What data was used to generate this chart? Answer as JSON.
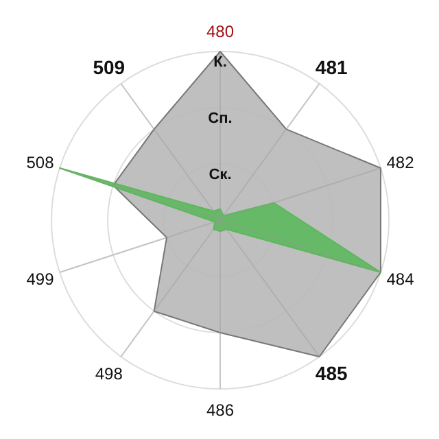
{
  "chart_data": {
    "type": "radar",
    "categories": [
      "480",
      "481",
      "482",
      "484",
      "485",
      "486",
      "498",
      "499",
      "508",
      "509"
    ],
    "ylim": [
      0,
      3
    ],
    "yticks": [
      {
        "value": 1,
        "label": "Ск."
      },
      {
        "value": 2,
        "label": "Сп."
      },
      {
        "value": 3,
        "label": "К."
      }
    ],
    "grid": true,
    "series": [
      {
        "color": "#b8b8b8",
        "values": [
          3,
          2,
          3,
          3,
          3,
          2,
          2,
          1,
          2,
          2
        ]
      },
      {
        "color": "#5cb85c",
        "values": [
          0.2,
          0.1,
          1,
          3,
          0.2,
          0.2,
          0.2,
          0.1,
          3,
          0.2
        ]
      }
    ]
  }
}
